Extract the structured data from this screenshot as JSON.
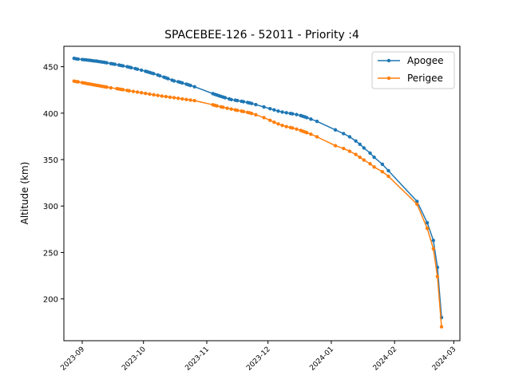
{
  "chart_data": {
    "type": "line",
    "title": "SPACEBEE-126 - 52011 - Priority :4",
    "xlabel": "",
    "ylabel": "Altitude (km)",
    "x_ticks": [
      "2023-09",
      "2023-10",
      "2023-11",
      "2023-12",
      "2024-01",
      "2024-02",
      "2024-03"
    ],
    "y_ticks": [
      200,
      250,
      300,
      350,
      400,
      450
    ],
    "xlim": [
      "2023-08-23",
      "2024-03-04"
    ],
    "ylim": [
      155,
      472
    ],
    "legend_position": "top-right",
    "grid": false,
    "series": [
      {
        "name": "Apogee",
        "color": "#1f77b4",
        "points": [
          [
            "2023-08-28",
            459
          ],
          [
            "2023-08-29",
            458.5
          ],
          [
            "2023-08-30",
            458.2
          ],
          [
            "2023-09-01",
            457.8
          ],
          [
            "2023-09-02",
            457.5
          ],
          [
            "2023-09-03",
            457.3
          ],
          [
            "2023-09-04",
            457
          ],
          [
            "2023-09-05",
            456.8
          ],
          [
            "2023-09-06",
            456.5
          ],
          [
            "2023-09-07",
            456.2
          ],
          [
            "2023-09-08",
            456
          ],
          [
            "2023-09-09",
            455.6
          ],
          [
            "2023-09-10",
            455.3
          ],
          [
            "2023-09-11",
            455
          ],
          [
            "2023-09-12",
            454.6
          ],
          [
            "2023-09-13",
            454.2
          ],
          [
            "2023-09-15",
            453.4
          ],
          [
            "2023-09-16",
            453
          ],
          [
            "2023-09-17",
            452.6
          ],
          [
            "2023-09-19",
            451.8
          ],
          [
            "2023-09-20",
            451.3
          ],
          [
            "2023-09-21",
            450.9
          ],
          [
            "2023-09-23",
            450
          ],
          [
            "2023-09-24",
            449.5
          ],
          [
            "2023-09-25",
            449
          ],
          [
            "2023-09-27",
            448
          ],
          [
            "2023-09-28",
            447.4
          ],
          [
            "2023-09-30",
            446.3
          ],
          [
            "2023-10-02",
            445.1
          ],
          [
            "2023-10-03",
            444.5
          ],
          [
            "2023-10-04",
            443.8
          ],
          [
            "2023-10-05",
            443.2
          ],
          [
            "2023-10-06",
            442.5
          ],
          [
            "2023-10-08",
            441.1
          ],
          [
            "2023-10-09",
            440.3
          ],
          [
            "2023-10-11",
            438.8
          ],
          [
            "2023-10-12",
            438
          ],
          [
            "2023-10-13",
            437.2
          ],
          [
            "2023-10-15",
            435.5
          ],
          [
            "2023-10-16",
            434.7
          ],
          [
            "2023-10-18",
            433.8
          ],
          [
            "2023-10-19",
            433.2
          ],
          [
            "2023-10-20",
            432.5
          ],
          [
            "2023-10-22",
            431.2
          ],
          [
            "2023-10-23",
            430.5
          ],
          [
            "2023-10-24",
            429.8
          ],
          [
            "2023-10-26",
            428.5
          ],
          [
            "2023-11-04",
            421
          ],
          [
            "2023-11-05",
            420.2
          ],
          [
            "2023-11-06",
            419.5
          ],
          [
            "2023-11-07",
            418.7
          ],
          [
            "2023-11-08",
            418
          ],
          [
            "2023-11-09",
            417.3
          ],
          [
            "2023-11-10",
            416.6
          ],
          [
            "2023-11-12",
            415.3
          ],
          [
            "2023-11-13",
            414.6
          ],
          [
            "2023-11-15",
            413.9
          ],
          [
            "2023-11-16",
            413.5
          ],
          [
            "2023-11-18",
            412.8
          ],
          [
            "2023-11-19",
            412.3
          ],
          [
            "2023-11-21",
            411.5
          ],
          [
            "2023-11-22",
            411
          ],
          [
            "2023-11-23",
            410.4
          ],
          [
            "2023-11-25",
            409.2
          ],
          [
            "2023-11-29",
            406.7
          ],
          [
            "2023-12-02",
            404.8
          ],
          [
            "2023-12-04",
            403.5
          ],
          [
            "2023-12-06",
            402.2
          ],
          [
            "2023-12-08",
            401.2
          ],
          [
            "2023-12-10",
            400.4
          ],
          [
            "2023-12-12",
            399.7
          ],
          [
            "2023-12-13",
            399.3
          ],
          [
            "2023-12-15",
            398.5
          ],
          [
            "2023-12-17",
            397.4
          ],
          [
            "2023-12-18",
            396.7
          ],
          [
            "2023-12-19",
            396
          ],
          [
            "2023-12-20",
            395.2
          ],
          [
            "2023-12-22",
            393.6
          ],
          [
            "2023-12-25",
            391.2
          ],
          [
            "2024-01-03",
            382
          ],
          [
            "2024-01-07",
            378
          ],
          [
            "2024-01-10",
            374.5
          ],
          [
            "2024-01-13",
            370
          ],
          [
            "2024-01-15",
            366.5
          ],
          [
            "2024-01-17",
            362.5
          ],
          [
            "2024-01-20",
            357
          ],
          [
            "2024-01-22",
            352.5
          ],
          [
            "2024-01-26",
            345
          ],
          [
            "2024-01-29",
            338
          ],
          [
            "2024-02-12",
            305
          ],
          [
            "2024-02-17",
            282
          ],
          [
            "2024-02-20",
            263
          ],
          [
            "2024-02-22",
            234
          ],
          [
            "2024-02-24",
            180
          ]
        ]
      },
      {
        "name": "Perigee",
        "color": "#ff7f0e",
        "points": [
          [
            "2023-08-28",
            434.5
          ],
          [
            "2023-08-29",
            434
          ],
          [
            "2023-08-30",
            433.7
          ],
          [
            "2023-09-01",
            432.8
          ],
          [
            "2023-09-02",
            432.4
          ],
          [
            "2023-09-03",
            432
          ],
          [
            "2023-09-04",
            431.6
          ],
          [
            "2023-09-05",
            431.2
          ],
          [
            "2023-09-06",
            430.8
          ],
          [
            "2023-09-07",
            430.4
          ],
          [
            "2023-09-08",
            430
          ],
          [
            "2023-09-09",
            429.6
          ],
          [
            "2023-09-10",
            429.2
          ],
          [
            "2023-09-11",
            428.8
          ],
          [
            "2023-09-12",
            428.4
          ],
          [
            "2023-09-13",
            428
          ],
          [
            "2023-09-15",
            427.3
          ],
          [
            "2023-09-18",
            426.4
          ],
          [
            "2023-09-19",
            426
          ],
          [
            "2023-09-20",
            425.6
          ],
          [
            "2023-09-21",
            425.2
          ],
          [
            "2023-09-23",
            424.5
          ],
          [
            "2023-09-24",
            424.1
          ],
          [
            "2023-09-26",
            423.4
          ],
          [
            "2023-09-28",
            422.7
          ],
          [
            "2023-09-30",
            422
          ],
          [
            "2023-10-02",
            421.3
          ],
          [
            "2023-10-04",
            420.5
          ],
          [
            "2023-10-06",
            419.8
          ],
          [
            "2023-10-08",
            419.1
          ],
          [
            "2023-10-10",
            418.4
          ],
          [
            "2023-10-12",
            417.8
          ],
          [
            "2023-10-14",
            417.2
          ],
          [
            "2023-10-16",
            416.6
          ],
          [
            "2023-10-18",
            416
          ],
          [
            "2023-10-20",
            415.3
          ],
          [
            "2023-10-22",
            414.7
          ],
          [
            "2023-10-24",
            414.1
          ],
          [
            "2023-10-26",
            413.5
          ],
          [
            "2023-11-04",
            409
          ],
          [
            "2023-11-05",
            408.4
          ],
          [
            "2023-11-06",
            407.8
          ],
          [
            "2023-11-08",
            406.8
          ],
          [
            "2023-11-09",
            406.3
          ],
          [
            "2023-11-11",
            405.3
          ],
          [
            "2023-11-13",
            404.4
          ],
          [
            "2023-11-15",
            403.5
          ],
          [
            "2023-11-16",
            403
          ],
          [
            "2023-11-18",
            402.2
          ],
          [
            "2023-11-19",
            401.7
          ],
          [
            "2023-11-21",
            400.8
          ],
          [
            "2023-11-22",
            400.3
          ],
          [
            "2023-11-23",
            399.7
          ],
          [
            "2023-11-25",
            398.3
          ],
          [
            "2023-11-29",
            395.2
          ],
          [
            "2023-12-02",
            392.3
          ],
          [
            "2023-12-04",
            390.2
          ],
          [
            "2023-12-06",
            388.4
          ],
          [
            "2023-12-08",
            386.8
          ],
          [
            "2023-12-10",
            385.5
          ],
          [
            "2023-12-12",
            384.5
          ],
          [
            "2023-12-13",
            384
          ],
          [
            "2023-12-15",
            382.8
          ],
          [
            "2023-12-17",
            381.4
          ],
          [
            "2023-12-18",
            380.6
          ],
          [
            "2023-12-19",
            379.8
          ],
          [
            "2023-12-20",
            379
          ],
          [
            "2023-12-22",
            377.3
          ],
          [
            "2023-12-25",
            374.5
          ],
          [
            "2024-01-03",
            365
          ],
          [
            "2024-01-07",
            362
          ],
          [
            "2024-01-10",
            359
          ],
          [
            "2024-01-13",
            355.5
          ],
          [
            "2024-01-15",
            352.5
          ],
          [
            "2024-01-17",
            349.5
          ],
          [
            "2024-01-20",
            345.5
          ],
          [
            "2024-01-22",
            342
          ],
          [
            "2024-01-26",
            337
          ],
          [
            "2024-01-29",
            332
          ],
          [
            "2024-02-12",
            302
          ],
          [
            "2024-02-17",
            276
          ],
          [
            "2024-02-20",
            254
          ],
          [
            "2024-02-22",
            224
          ],
          [
            "2024-02-24",
            170
          ]
        ]
      }
    ]
  }
}
